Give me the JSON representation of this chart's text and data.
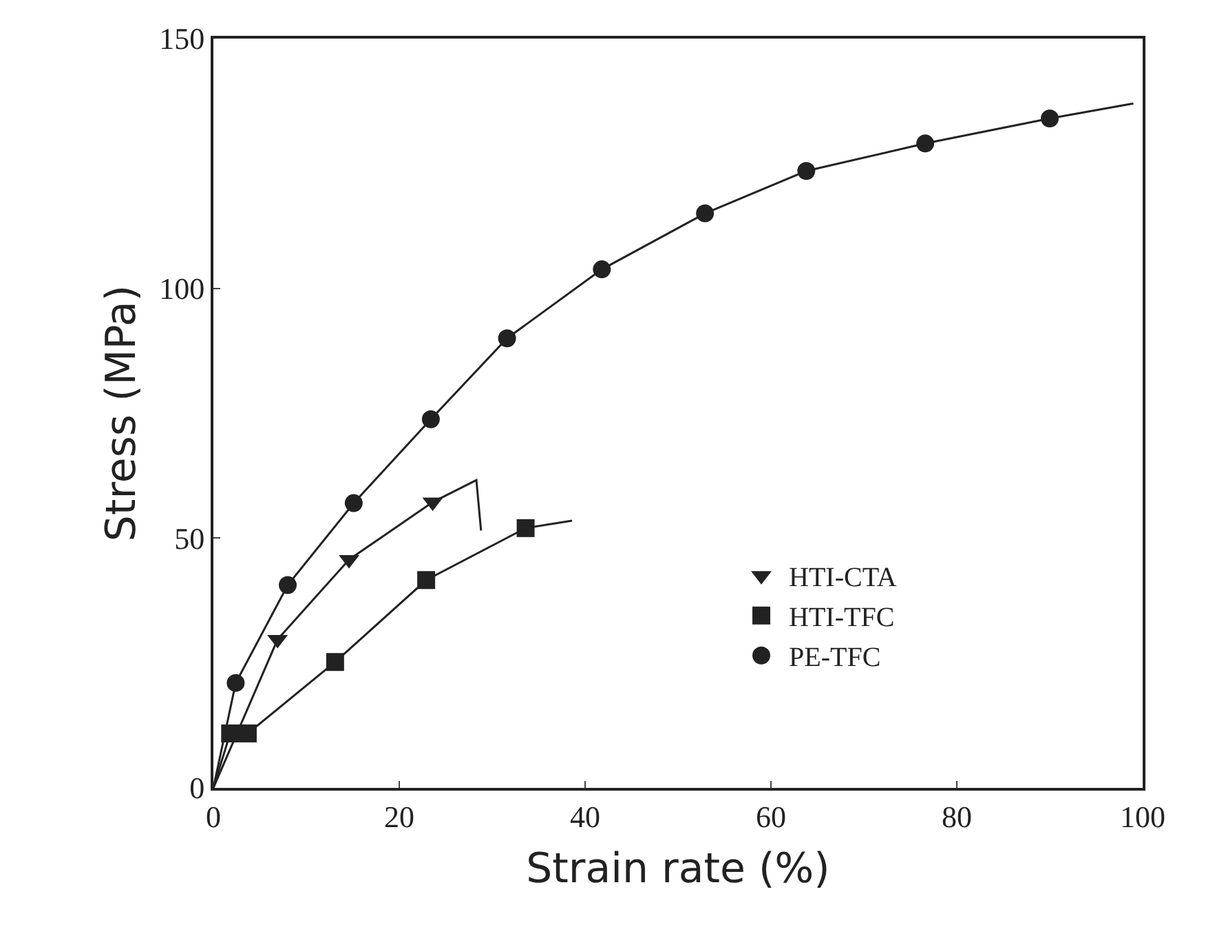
{
  "chart_data": {
    "type": "line",
    "xlabel": "Strain rate (%)",
    "ylabel": "Stress (MPa)",
    "xlim": [
      0,
      100
    ],
    "xticks": [
      0,
      20,
      40,
      60,
      80,
      100
    ],
    "ylim": [
      0,
      150
    ],
    "yticks": [
      0,
      50,
      100,
      150
    ],
    "legend": "right",
    "series": [
      {
        "name": "HTI-CTA",
        "type": "scatter",
        "marker": "triangle",
        "color": "#222222",
        "x": [
          6.9,
          14.6,
          23.6
        ],
        "values": [
          29.7,
          45.7,
          57.2
        ]
      },
      {
        "name": "HTI-TFC",
        "type": "scatter",
        "marker": "square",
        "color": "#222222",
        "x": [
          1.8,
          3.7,
          13.1,
          22.9,
          33.6
        ],
        "values": [
          10.9,
          10.9,
          25.2,
          41.6,
          52
        ]
      },
      {
        "name": "PE-TFC",
        "type": "scatter",
        "marker": "circle",
        "color": "#222222",
        "x": [
          2.4,
          8.0,
          15.1,
          23.4,
          31.6,
          41.8,
          52.9,
          63.8,
          76.6,
          90
        ],
        "values": [
          21,
          40.6,
          57,
          73.8,
          90,
          103.8,
          115,
          123.5,
          129,
          134
        ]
      },
      {
        "marker": "none",
        "color": "#222222",
        "x": [
          0,
          6.9,
          14.6,
          23.6,
          28.3,
          28.8
        ],
        "values": [
          0,
          29.7,
          45.7,
          57.2,
          61.6,
          51.5
        ]
      },
      {
        "marker": "none",
        "color": "#222222",
        "x": [
          0,
          1.8,
          3.7,
          13.1,
          22.9,
          33.6,
          38.6
        ],
        "values": [
          0,
          10.9,
          10.9,
          25.2,
          41.6,
          52,
          53.5
        ]
      },
      {
        "marker": "none",
        "color": "#222222",
        "x": [
          0,
          2.4,
          8.0,
          15.1,
          23.4,
          31.6,
          41.8,
          52.9,
          63.8,
          76.6,
          90,
          99
        ],
        "values": [
          0,
          21,
          40.6,
          57,
          73.8,
          90,
          103.8,
          115,
          123.5,
          129,
          134,
          137
        ]
      }
    ]
  }
}
